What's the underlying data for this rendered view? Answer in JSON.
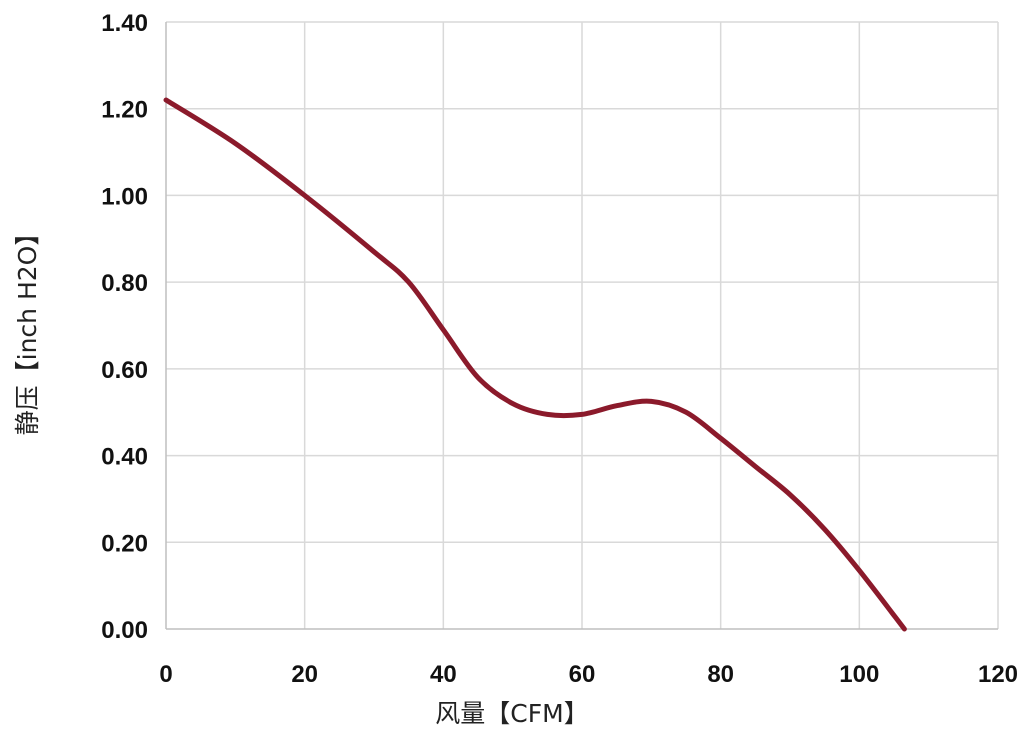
{
  "chart_data": {
    "type": "line",
    "title": "",
    "xlabel": "风量【CFM】",
    "ylabel": "静压【inch H2O】",
    "xlim": [
      0,
      120
    ],
    "ylim": [
      0,
      1.4
    ],
    "x_ticks": [
      "0",
      "20",
      "40",
      "60",
      "80",
      "100",
      "120"
    ],
    "y_ticks": [
      "0.00",
      "0.20",
      "0.40",
      "0.60",
      "0.80",
      "1.00",
      "1.20",
      "1.40"
    ],
    "grid": true,
    "legend": "none",
    "series": [
      {
        "color": "#8b1a2b",
        "x": [
          0,
          10,
          20,
          30,
          35,
          40,
          45,
          50,
          55,
          60,
          65,
          70,
          75,
          80,
          85,
          90,
          95,
          100,
          106.5
        ],
        "y": [
          1.22,
          1.12,
          1.0,
          0.87,
          0.8,
          0.69,
          0.58,
          0.52,
          0.495,
          0.495,
          0.515,
          0.525,
          0.5,
          0.44,
          0.375,
          0.31,
          0.23,
          0.135,
          0.0
        ]
      }
    ]
  }
}
